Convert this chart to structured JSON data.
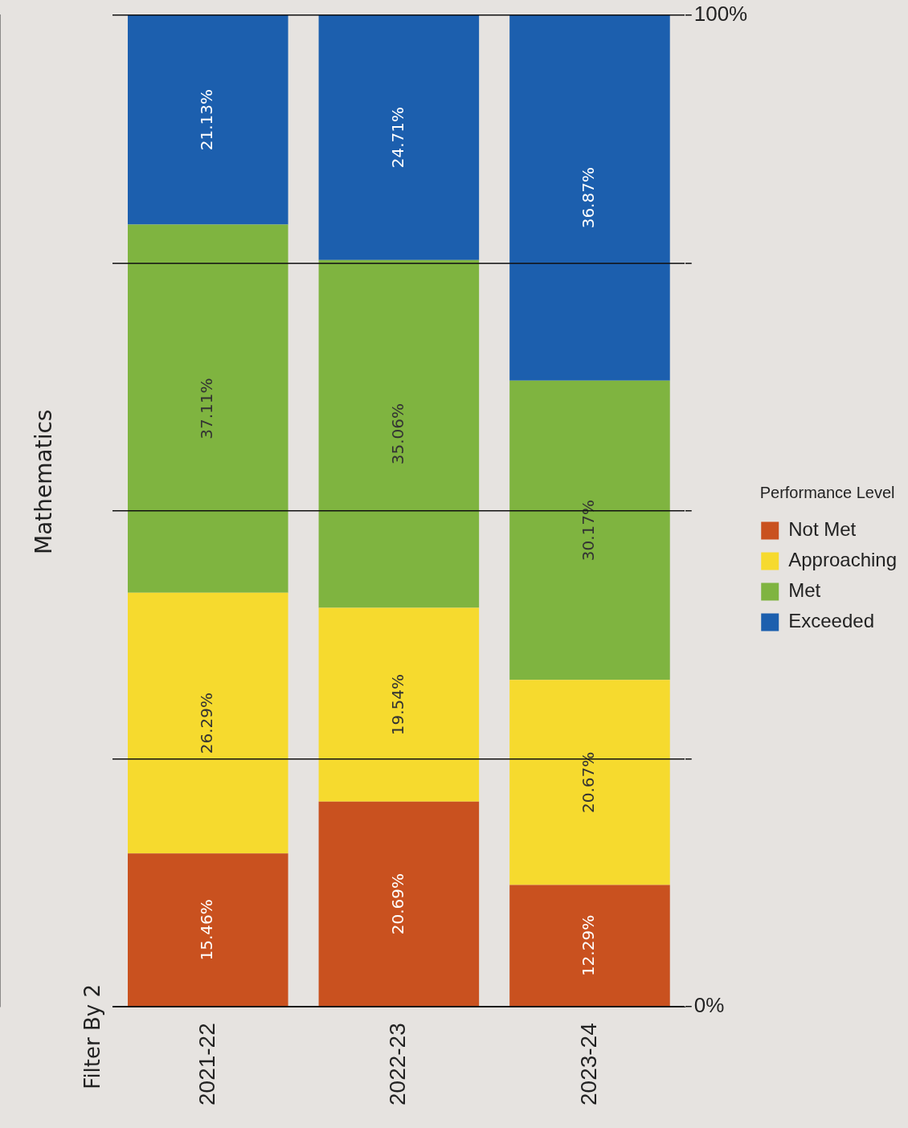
{
  "chart_data": {
    "type": "bar",
    "stacked": true,
    "title": "Mathematics",
    "legend_title": "Performance Level",
    "legend": "right",
    "grid": "y",
    "annotations": [
      "Filter By 2"
    ],
    "categories": [
      "2021-22",
      "2022-23",
      "2023-24"
    ],
    "series": [
      {
        "name": "Not Met",
        "color": "#c9511f",
        "values": [
          15.46,
          20.69,
          12.29
        ],
        "value_labels": [
          "15.46%",
          "20.69%",
          "12.29%"
        ]
      },
      {
        "name": "Approaching",
        "color": "#f6da2e",
        "values": [
          26.29,
          19.54,
          20.67
        ],
        "value_labels": [
          "26.29%",
          "19.54%",
          "20.67%"
        ]
      },
      {
        "name": "Met",
        "color": "#7fb440",
        "values": [
          37.11,
          35.06,
          30.17
        ],
        "value_labels": [
          "37.11%",
          "35.06%",
          "30.17%"
        ]
      },
      {
        "name": "Exceeded",
        "color": "#1c5fae",
        "values": [
          21.13,
          24.71,
          36.87
        ],
        "value_labels": [
          "21.13%",
          "24.71%",
          "36.87%"
        ]
      }
    ],
    "ylim": [
      0,
      100
    ],
    "yticks": [
      {
        "value": 0,
        "label": "0%"
      },
      {
        "value": 25,
        "label": null
      },
      {
        "value": 50,
        "label": null
      },
      {
        "value": 75,
        "label": null
      },
      {
        "value": 100,
        "label": "100%"
      }
    ]
  }
}
